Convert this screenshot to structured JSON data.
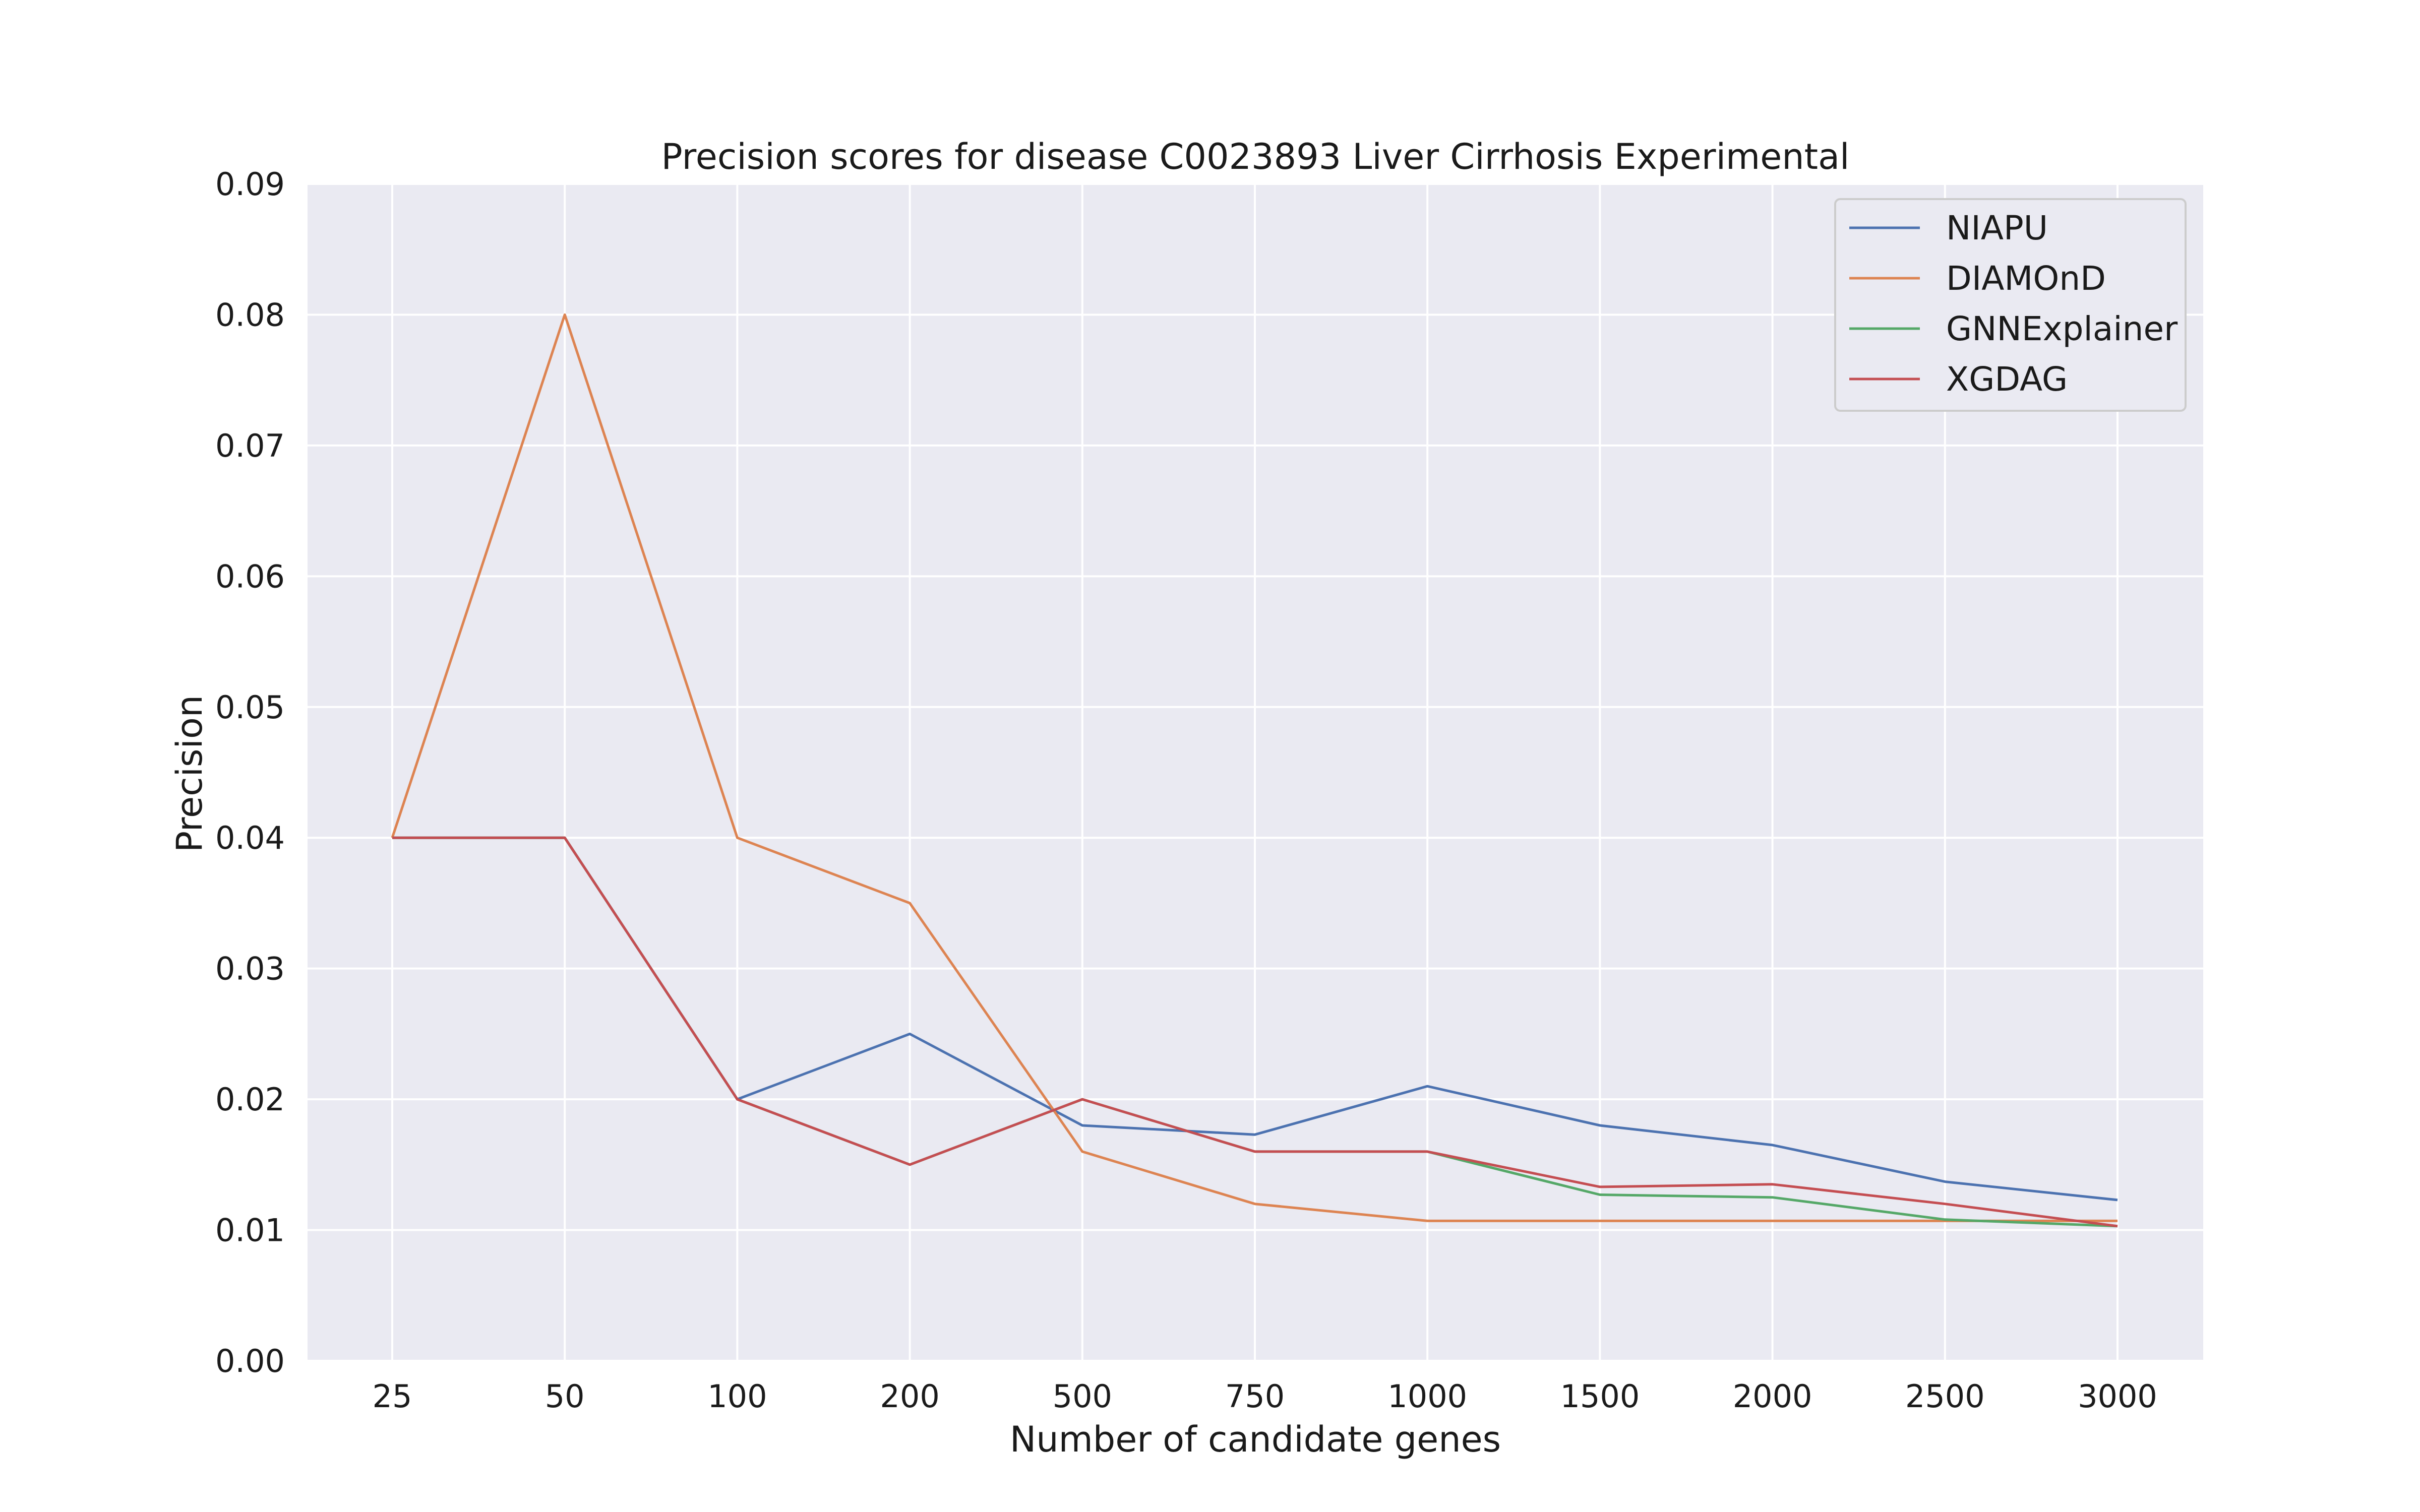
{
  "chart_data": {
    "type": "line",
    "title": "Precision scores for disease C0023893 Liver Cirrhosis Experimental",
    "xlabel": "Number of candidate genes",
    "ylabel": "Precision",
    "categories": [
      "25",
      "50",
      "100",
      "200",
      "500",
      "750",
      "1000",
      "1500",
      "2000",
      "2500",
      "3000"
    ],
    "ylim": [
      0,
      0.09
    ],
    "yticks": [
      "0.00",
      "0.01",
      "0.02",
      "0.03",
      "0.04",
      "0.05",
      "0.06",
      "0.07",
      "0.08",
      "0.09"
    ],
    "grid": true,
    "legend_position": "top-right",
    "background_color": "#eaeaf2",
    "series": [
      {
        "name": "NIAPU",
        "color": "#4c72b0",
        "values": [
          0.04,
          0.04,
          0.02,
          0.025,
          0.018,
          0.0173,
          0.021,
          0.018,
          0.0165,
          0.0137,
          0.0123
        ]
      },
      {
        "name": "DIAMOnD",
        "color": "#dd8452",
        "values": [
          0.04,
          0.08,
          0.04,
          0.035,
          0.016,
          0.012,
          0.0107,
          0.0107,
          0.0107,
          0.0107,
          0.0107
        ]
      },
      {
        "name": "GNNExplainer",
        "color": "#55a868",
        "values": [
          0.04,
          0.04,
          0.02,
          0.015,
          0.02,
          0.016,
          0.016,
          0.0127,
          0.0125,
          0.0108,
          0.0103
        ]
      },
      {
        "name": "XGDAG",
        "color": "#c44e52",
        "values": [
          0.04,
          0.04,
          0.02,
          0.015,
          0.02,
          0.016,
          0.016,
          0.0133,
          0.0135,
          0.012,
          0.0103
        ]
      }
    ]
  }
}
